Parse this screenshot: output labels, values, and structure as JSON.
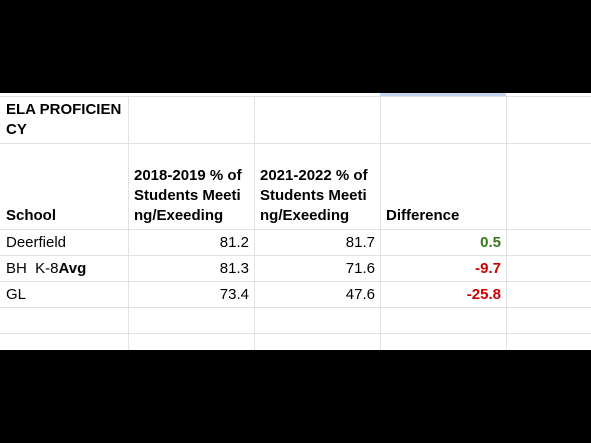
{
  "table": {
    "title": "ELA PROFICIENCY",
    "header": [
      "School",
      "2018-2019 % of Students Meeting/Exeeding",
      "2021-2022 % of Students Meeting/Exeeding",
      "Difference"
    ],
    "rows": [
      {
        "school": "Deerfield",
        "y2019": 81.2,
        "y2022": 81.7,
        "difference": 0.5
      },
      {
        "school": "BH  K-8",
        "school_suffix": "Avg",
        "y2019": 81.3,
        "y2022": 71.6,
        "difference": -9.7
      },
      {
        "school": "GL",
        "y2019": 73.4,
        "y2022": 47.6,
        "difference": -25.8
      }
    ]
  }
}
